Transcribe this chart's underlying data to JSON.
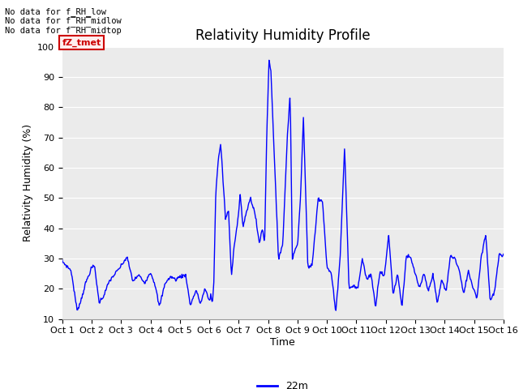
{
  "title": "Relativity Humidity Profile",
  "ylabel": "Relativity Humidity (%)",
  "xlabel": "Time",
  "ylim": [
    10,
    100
  ],
  "yticks": [
    10,
    20,
    30,
    40,
    50,
    60,
    70,
    80,
    90,
    100
  ],
  "x_labels": [
    "Oct 1",
    "Oct 2",
    "Oct 3",
    "Oct 4",
    "Oct 5",
    "Oct 6",
    "Oct 7",
    "Oct 8",
    "Oct 9",
    "Oct 10",
    "Oct 11",
    "Oct 12",
    "Oct 13",
    "Oct 14",
    "Oct 15",
    "Oct 16"
  ],
  "line_color": "blue",
  "legend_label": "22m",
  "no_data_texts": [
    "No data for f_RH_low",
    "No data for f̅RH̅midlow",
    "No data for f̅RH̅midtop"
  ],
  "legend_box_label": "fZ_tmet",
  "legend_box_color": "#cc0000",
  "legend_box_bg": "#ffeeee",
  "plot_bg_color": "#ebebeb",
  "grid_color": "#ffffff",
  "title_fontsize": 12,
  "tick_fontsize": 8,
  "ylabel_fontsize": 9
}
